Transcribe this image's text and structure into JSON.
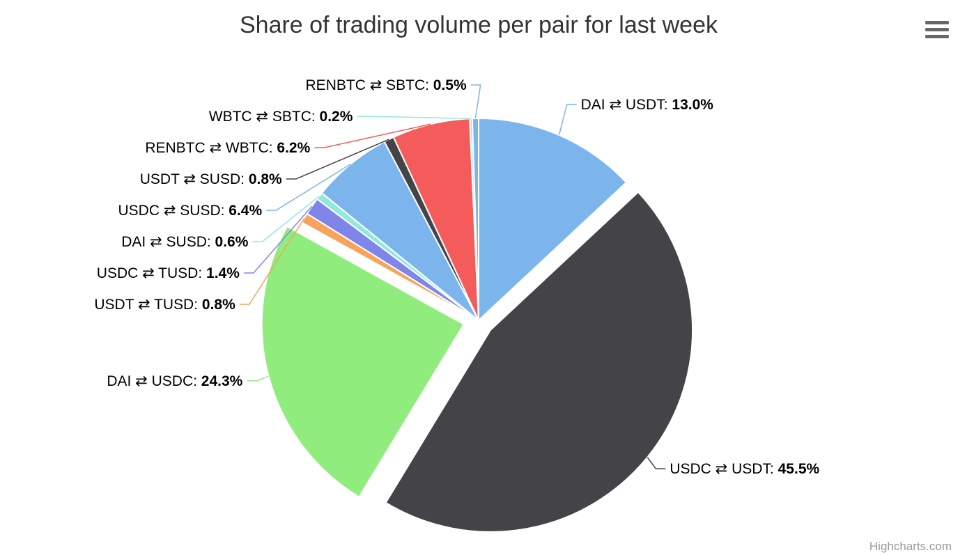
{
  "chart_data": {
    "type": "pie",
    "title": "Share of trading volume per pair for last week",
    "value_suffix": "%",
    "slices": [
      {
        "name": "DAI ⇄ USDT",
        "value": 13.0,
        "color": "#7cb5ec",
        "sliced": false
      },
      {
        "name": "USDC ⇄ USDT",
        "value": 45.5,
        "color": "#434348",
        "sliced": true
      },
      {
        "name": "DAI ⇄ USDC",
        "value": 24.3,
        "color": "#90ed7d",
        "sliced": true
      },
      {
        "name": "USDT ⇄ TUSD",
        "value": 0.8,
        "color": "#f7a35c",
        "sliced": false
      },
      {
        "name": "USDC ⇄ TUSD",
        "value": 1.4,
        "color": "#8085e9",
        "sliced": false
      },
      {
        "name": "DAI ⇄ SUSD",
        "value": 0.6,
        "color": "#91e8e1",
        "sliced": false
      },
      {
        "name": "USDC ⇄ SUSD",
        "value": 6.4,
        "color": "#7cb5ec",
        "sliced": false
      },
      {
        "name": "USDT ⇄ SUSD",
        "value": 0.8,
        "color": "#434348",
        "sliced": false
      },
      {
        "name": "RENBTC ⇄ WBTC",
        "value": 6.2,
        "color": "#f45b5b",
        "sliced": false
      },
      {
        "name": "WBTC ⇄ SBTC",
        "value": 0.2,
        "color": "#91e8e1",
        "sliced": false
      },
      {
        "name": "RENBTC ⇄ SBTC",
        "value": 0.5,
        "color": "#7cb5ec",
        "sliced": false
      }
    ]
  },
  "credits": "Highcharts.com",
  "menu_icon": "hamburger-menu-icon"
}
